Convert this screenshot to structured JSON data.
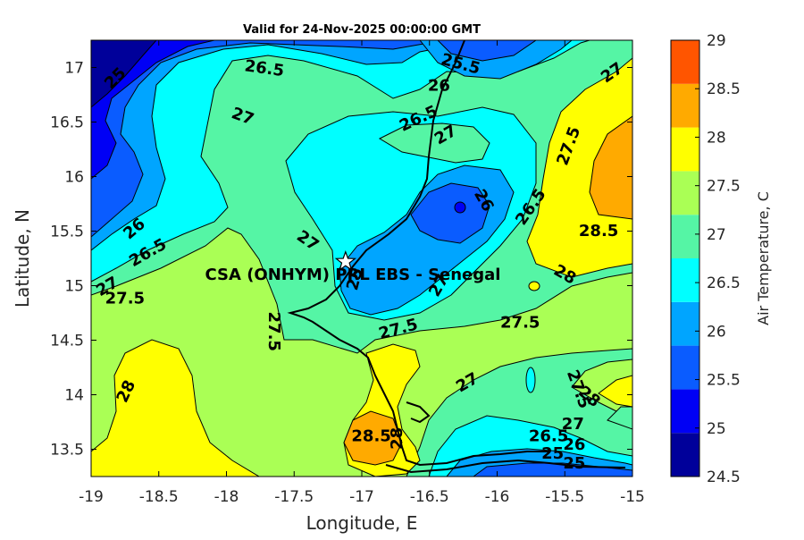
{
  "title": "Valid for 24-Nov-2025 00:00:00 GMT",
  "axes": {
    "xlabel": "Longitude, E",
    "ylabel": "Latitude, N",
    "xlim": [
      -19,
      -15
    ],
    "ylim": [
      13.25,
      17.25
    ],
    "xticks": [
      "-19",
      "-18.5",
      "-18",
      "-17.5",
      "-17",
      "-16.5",
      "-16",
      "-15.5",
      "-15"
    ],
    "yticks": [
      "13.5",
      "14",
      "14.5",
      "15",
      "15.5",
      "16",
      "16.5",
      "17"
    ]
  },
  "colorbar": {
    "label": "Air Temperature, C",
    "ticks": [
      "24.5",
      "25",
      "25.5",
      "26",
      "26.5",
      "27",
      "27.5",
      "28",
      "28.5",
      "29"
    ],
    "colors": [
      "#00009a",
      "#0000f5",
      "#0a5cff",
      "#00a5ff",
      "#00ffff",
      "#55f5a5",
      "#aaff55",
      "#ffff00",
      "#ffaa00",
      "#ff5500"
    ]
  },
  "station": {
    "label": "CSA (ONHYM) PRL EBS  - Senegal",
    "lon": -17.12,
    "lat": 15.22,
    "marker": "star-icon"
  },
  "contour_labels": [
    {
      "text": "25.5",
      "lon": -16.27,
      "lat": 17.03,
      "rot": 15
    },
    {
      "text": "26.5",
      "lon": -17.72,
      "lat": 16.99,
      "rot": 8
    },
    {
      "text": "26",
      "lon": -16.43,
      "lat": 16.83,
      "rot": 0
    },
    {
      "text": "25",
      "lon": -18.82,
      "lat": 16.9,
      "rot": -45
    },
    {
      "text": "27",
      "lon": -15.15,
      "lat": 16.95,
      "rot": -35
    },
    {
      "text": "27",
      "lon": -17.88,
      "lat": 16.55,
      "rot": 20
    },
    {
      "text": "26.5",
      "lon": -16.58,
      "lat": 16.53,
      "rot": -25
    },
    {
      "text": "27",
      "lon": -16.38,
      "lat": 16.38,
      "rot": -30
    },
    {
      "text": "27.5",
      "lon": -15.47,
      "lat": 16.28,
      "rot": -70
    },
    {
      "text": "26",
      "lon": -16.1,
      "lat": 15.78,
      "rot": 60
    },
    {
      "text": "26.5",
      "lon": -15.75,
      "lat": 15.72,
      "rot": -55
    },
    {
      "text": "26",
      "lon": -18.68,
      "lat": 15.52,
      "rot": -40
    },
    {
      "text": "26.5",
      "lon": -18.58,
      "lat": 15.3,
      "rot": -30
    },
    {
      "text": "27",
      "lon": -17.4,
      "lat": 15.41,
      "rot": 35
    },
    {
      "text": "28.5",
      "lon": -15.25,
      "lat": 15.5,
      "rot": 0
    },
    {
      "text": "27",
      "lon": -18.88,
      "lat": 14.99,
      "rot": -30
    },
    {
      "text": "27.5",
      "lon": -18.75,
      "lat": 14.88,
      "rot": 0
    },
    {
      "text": "25",
      "lon": -17.05,
      "lat": 15.06,
      "rot": -75
    },
    {
      "text": "27",
      "lon": -16.43,
      "lat": 15.0,
      "rot": -60
    },
    {
      "text": "28",
      "lon": -15.5,
      "lat": 15.1,
      "rot": 30
    },
    {
      "text": "27.5",
      "lon": -17.65,
      "lat": 14.58,
      "rot": 90
    },
    {
      "text": "27.5",
      "lon": -16.73,
      "lat": 14.6,
      "rot": -15
    },
    {
      "text": "27.5",
      "lon": -15.83,
      "lat": 14.66,
      "rot": 0
    },
    {
      "text": "28",
      "lon": -18.74,
      "lat": 14.03,
      "rot": -65
    },
    {
      "text": "27",
      "lon": -16.22,
      "lat": 14.11,
      "rot": -30
    },
    {
      "text": "27.5",
      "lon": -15.4,
      "lat": 14.05,
      "rot": 70
    },
    {
      "text": "28",
      "lon": -15.32,
      "lat": 13.98,
      "rot": 40
    },
    {
      "text": "27",
      "lon": -15.44,
      "lat": 13.73,
      "rot": 0
    },
    {
      "text": "28.5",
      "lon": -16.93,
      "lat": 13.62,
      "rot": 0
    },
    {
      "text": "28",
      "lon": -16.74,
      "lat": 13.6,
      "rot": -90
    },
    {
      "text": "26.5",
      "lon": -15.62,
      "lat": 13.62,
      "rot": 0
    },
    {
      "text": "26",
      "lon": -15.43,
      "lat": 13.54,
      "rot": 0
    },
    {
      "text": "25",
      "lon": -15.59,
      "lat": 13.46,
      "rot": 0
    },
    {
      "text": "25",
      "lon": -15.43,
      "lat": 13.37,
      "rot": 0
    }
  ]
}
